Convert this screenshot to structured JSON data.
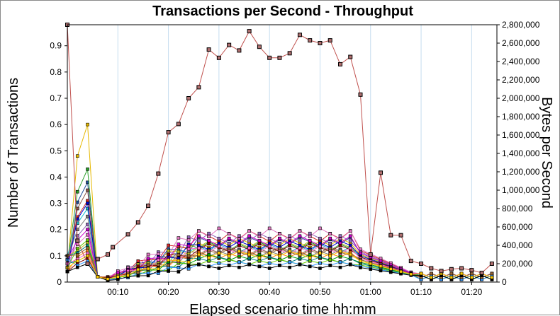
{
  "chart_data": {
    "type": "line",
    "title": "Transactions per Second - Throughput",
    "xlabel": "Elapsed scenario time hh:mm",
    "ylabel_left": "Number of Transactions",
    "ylabel_right": "Bytes per Second",
    "x_unit": "minutes",
    "xlim": [
      0,
      85
    ],
    "x_ticks": [
      {
        "x": 10,
        "label": "00:10"
      },
      {
        "x": 20,
        "label": "00:20"
      },
      {
        "x": 30,
        "label": "00:30"
      },
      {
        "x": 40,
        "label": "00:40"
      },
      {
        "x": 50,
        "label": "00:50"
      },
      {
        "x": 60,
        "label": "01:00"
      },
      {
        "x": 70,
        "label": "01:10"
      },
      {
        "x": 80,
        "label": "01:20"
      }
    ],
    "y_left_lim": [
      0,
      0.98
    ],
    "y_left_ticks": [
      "0",
      "0.1",
      "0.2",
      "0.3",
      "0.4",
      "0.5",
      "0.6",
      "0.7",
      "0.8",
      "0.9"
    ],
    "y_right_lim": [
      0,
      2800000
    ],
    "y_right_ticks": [
      "0",
      "200,000",
      "400,000",
      "600,000",
      "800,000",
      "1,000,000",
      "1,200,000",
      "1,400,000",
      "1,600,000",
      "1,800,000",
      "2,000,000",
      "2,200,000",
      "2,400,000",
      "2,600,000",
      "2,800,000"
    ],
    "grid": "vertical",
    "throughput_series": {
      "axis": "right",
      "color": "#c0504d",
      "points": [
        [
          0,
          2800000
        ],
        [
          2,
          450000
        ],
        [
          4,
          200000
        ],
        [
          6,
          250000
        ],
        [
          8,
          300000
        ],
        [
          9,
          380000
        ],
        [
          12,
          520000
        ],
        [
          14,
          650000
        ],
        [
          16,
          830000
        ],
        [
          18,
          1180000
        ],
        [
          20,
          1630000
        ],
        [
          22,
          1720000
        ],
        [
          24,
          2000000
        ],
        [
          26,
          2120000
        ],
        [
          28,
          2530000
        ],
        [
          30,
          2440000
        ],
        [
          32,
          2580000
        ],
        [
          34,
          2520000
        ],
        [
          36,
          2730000
        ],
        [
          38,
          2560000
        ],
        [
          40,
          2440000
        ],
        [
          42,
          2440000
        ],
        [
          44,
          2490000
        ],
        [
          46,
          2690000
        ],
        [
          48,
          2630000
        ],
        [
          50,
          2600000
        ],
        [
          52,
          2630000
        ],
        [
          54,
          2370000
        ],
        [
          56,
          2450000
        ],
        [
          58,
          2040000
        ],
        [
          60,
          300000
        ],
        [
          62,
          1190000
        ],
        [
          64,
          510000
        ],
        [
          66,
          510000
        ],
        [
          68,
          230000
        ],
        [
          70,
          200000
        ],
        [
          72,
          150000
        ],
        [
          74,
          120000
        ],
        [
          76,
          140000
        ],
        [
          78,
          150000
        ],
        [
          80,
          130000
        ],
        [
          82,
          100000
        ],
        [
          84,
          200000
        ]
      ]
    },
    "transaction_series_colors": [
      "#1f4e9c",
      "#e6b800",
      "#2ca02c",
      "#d62728",
      "#17becf",
      "#9467bd",
      "#8c564b",
      "#e377c2",
      "#7f7f7f",
      "#bcbd22",
      "#ff7f0e",
      "#0000cc",
      "#00a000",
      "#cc00cc",
      "#008080",
      "#800000",
      "#66cc00",
      "#ff66cc",
      "#3399ff",
      "#996633",
      "#000000",
      "#ffcc00"
    ],
    "transaction_series_count": 22,
    "transaction_series_peak_values": [
      0.18,
      0.17,
      0.16,
      0.2,
      0.15,
      0.19,
      0.14,
      0.21,
      0.13,
      0.17,
      0.12,
      0.16,
      0.11,
      0.18,
      0.1,
      0.15,
      0.09,
      0.14,
      0.08,
      0.13,
      0.07,
      0.12
    ],
    "transaction_series_early_spikes": [
      0.38,
      0.6,
      0.43,
      0.31,
      0.28,
      0.22,
      0.35,
      0.18,
      0.25,
      0.15,
      0.12,
      0.3,
      0.1,
      0.2,
      0.14,
      0.09,
      0.16,
      0.11,
      0.08,
      0.13,
      0.07,
      0.1
    ]
  }
}
